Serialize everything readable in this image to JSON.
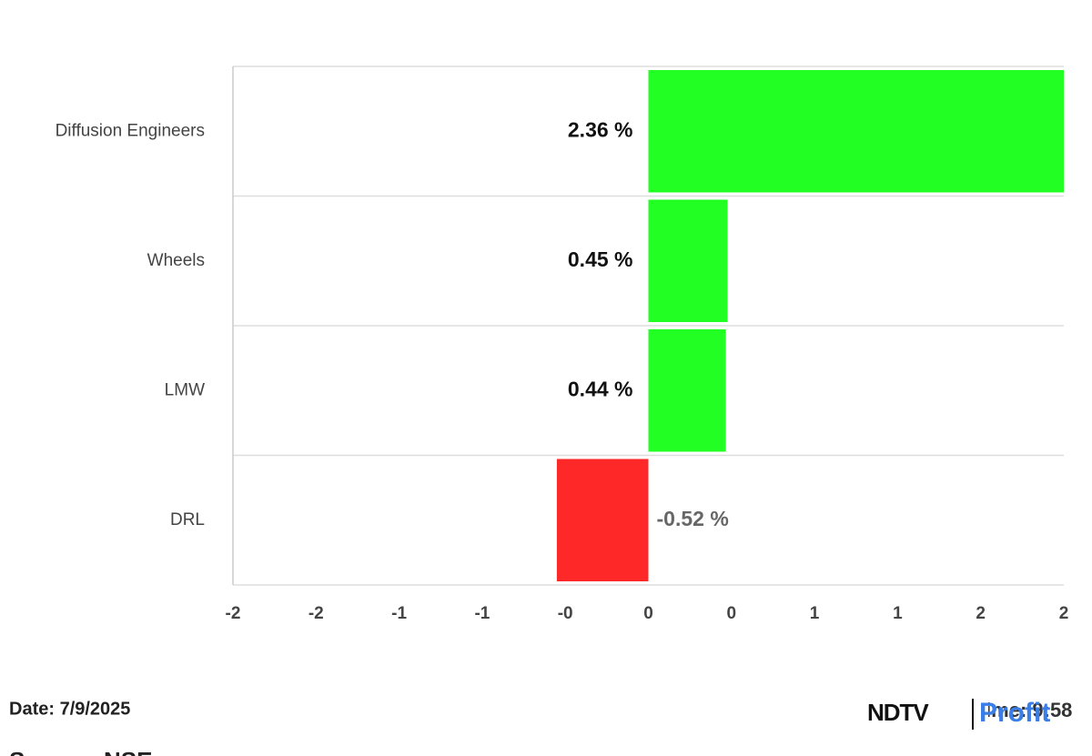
{
  "chart_data": {
    "type": "hbar",
    "categories": [
      "Diffusion Engineers",
      "Wheels",
      "LMW",
      "DRL"
    ],
    "values": [
      2.36,
      0.45,
      0.44,
      -0.52
    ],
    "value_labels": [
      "2.36 %",
      "0.45 %",
      "0.44 %",
      "-0.52 %"
    ],
    "positive_color": "#22ff22",
    "negative_color": "#ff2828",
    "xlim": [
      -2.36,
      2.36
    ],
    "xticks": [
      {
        "value": -2.36,
        "label": "-2"
      },
      {
        "value": -1.888,
        "label": "-2"
      },
      {
        "value": -1.416,
        "label": "-1"
      },
      {
        "value": -0.944,
        "label": "-1"
      },
      {
        "value": -0.472,
        "label": "-0"
      },
      0,
      {
        "value": 0.472,
        "label": "0"
      },
      {
        "value": 0.944,
        "label": "1"
      },
      {
        "value": 1.416,
        "label": "1"
      },
      {
        "value": 1.888,
        "label": "2"
      },
      {
        "value": 2.36,
        "label": "2"
      }
    ]
  },
  "footer": {
    "date": "Date: 7/9/2025",
    "time": "Time: 9:58",
    "source": "Source: NSE",
    "logo_main": "NDTV",
    "logo_sub": "Profit"
  }
}
